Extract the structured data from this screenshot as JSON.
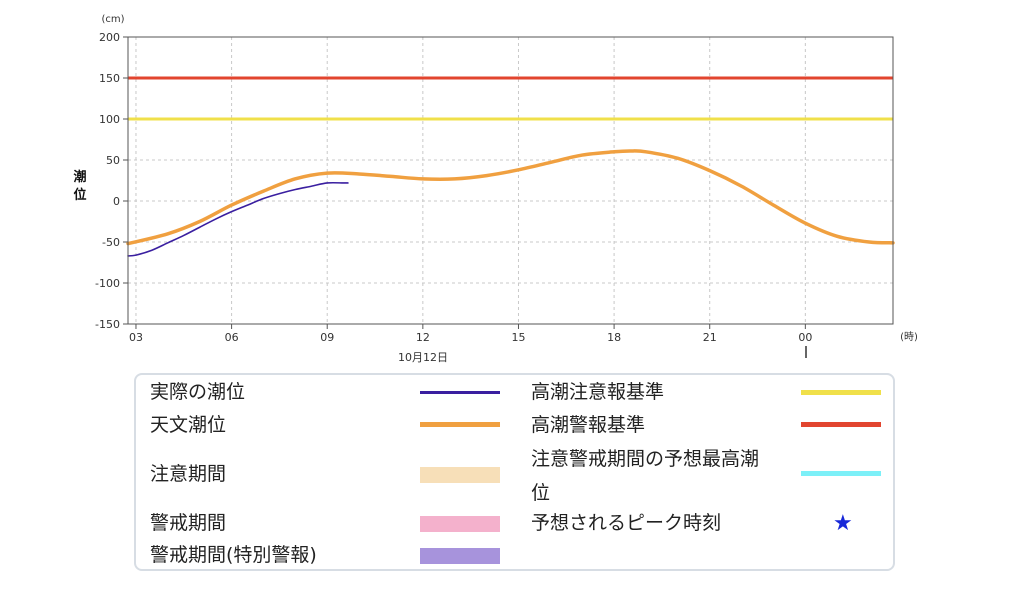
{
  "chart_data": {
    "type": "line",
    "ylabel": "潮位",
    "y_unit": "(cm)",
    "x_unit": "(時)",
    "date_label": "10月12日",
    "ylim": [
      -150,
      200
    ],
    "yticks": [
      200,
      150,
      100,
      50,
      0,
      -50,
      -100,
      -150
    ],
    "xlim_hours": [
      2.75,
      26.75
    ],
    "xticks": [
      {
        "hour": 3,
        "label": "03"
      },
      {
        "hour": 6,
        "label": "06"
      },
      {
        "hour": 9,
        "label": "09"
      },
      {
        "hour": 12,
        "label": "12"
      },
      {
        "hour": 15,
        "label": "15"
      },
      {
        "hour": 18,
        "label": "18"
      },
      {
        "hour": 21,
        "label": "21"
      },
      {
        "hour": 24,
        "label": "00"
      }
    ],
    "grid": true,
    "thresholds": [
      {
        "name": "高潮注意報基準",
        "value": 100,
        "color": "#f0e04a"
      },
      {
        "name": "高潮警報基準",
        "value": 150,
        "color": "#e2452f"
      }
    ],
    "series": [
      {
        "name": "天文潮位",
        "color": "#f0a040",
        "x": [
          2.75,
          4,
          5,
          6,
          7,
          8,
          9,
          10,
          11,
          12,
          13,
          14,
          15,
          16,
          17,
          18,
          18.5,
          19,
          20,
          21,
          22,
          23,
          24,
          25,
          26,
          26.75
        ],
        "y": [
          -52,
          -40,
          -25,
          -5,
          12,
          27,
          34,
          33,
          30,
          27,
          27,
          31,
          38,
          47,
          56,
          60,
          61,
          60,
          52,
          37,
          18,
          -5,
          -27,
          -43,
          -50,
          -51
        ]
      },
      {
        "name": "実際の潮位",
        "color": "#3a1fa0",
        "x": [
          2.75,
          3,
          3.5,
          4,
          4.5,
          5,
          5.5,
          6,
          6.5,
          7,
          7.5,
          8,
          8.5,
          9,
          9.5,
          9.65
        ],
        "y": [
          -67,
          -66,
          -60,
          -51,
          -42,
          -32,
          -22,
          -13,
          -5,
          3,
          9,
          14,
          18,
          22,
          22,
          22
        ]
      }
    ]
  },
  "legend": [
    {
      "label": "実際の潮位",
      "type": "line",
      "color": "#3a1fa0"
    },
    {
      "label": "天文潮位",
      "type": "line",
      "color": "#f0a040"
    },
    {
      "label": "注意期間",
      "type": "box",
      "color": "#f7dfb8"
    },
    {
      "label": "警戒期間",
      "type": "box",
      "color": "#f4b1cc"
    },
    {
      "label": "警戒期間(特別警報)",
      "type": "box",
      "color": "#a793dc"
    },
    {
      "label": "高潮注意報基準",
      "type": "line",
      "color": "#f0e04a"
    },
    {
      "label": "高潮警報基準",
      "type": "line",
      "color": "#e2452f"
    },
    {
      "label": "注意警戒期間の予想最高潮位",
      "type": "line",
      "color": "#7cf0f8"
    },
    {
      "label": "予想されるピーク時刻",
      "type": "star",
      "color": "#1727d8",
      "symbol": "★"
    }
  ]
}
